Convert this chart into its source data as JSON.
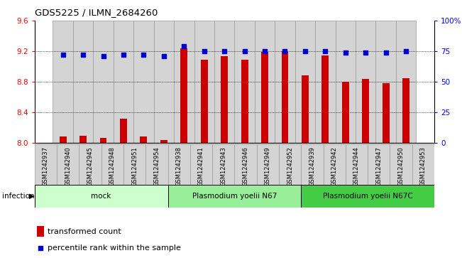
{
  "title": "GDS5225 / ILMN_2684260",
  "samples": [
    "GSM1242937",
    "GSM1242940",
    "GSM1242945",
    "GSM1242948",
    "GSM1242951",
    "GSM1242954",
    "GSM1242938",
    "GSM1242941",
    "GSM1242943",
    "GSM1242946",
    "GSM1242949",
    "GSM1242952",
    "GSM1242939",
    "GSM1242942",
    "GSM1242944",
    "GSM1242947",
    "GSM1242950",
    "GSM1242953"
  ],
  "bar_values": [
    8.09,
    8.1,
    8.07,
    8.32,
    8.09,
    8.04,
    9.24,
    9.09,
    9.14,
    9.09,
    9.19,
    9.2,
    8.89,
    9.15,
    8.8,
    8.84,
    8.78,
    8.85
  ],
  "dot_values": [
    72,
    72,
    71,
    72,
    72,
    71,
    79,
    75,
    75,
    75,
    75,
    75,
    75,
    75,
    74,
    74,
    74,
    75
  ],
  "bar_color": "#cc0000",
  "dot_color": "#0000cc",
  "ylim_left": [
    8.0,
    9.6
  ],
  "ylim_right": [
    0,
    100
  ],
  "yticks_left": [
    8.0,
    8.4,
    8.8,
    9.2,
    9.6
  ],
  "yticks_right": [
    0,
    25,
    50,
    75,
    100
  ],
  "group_labels": [
    "mock",
    "Plasmodium yoelii N67",
    "Plasmodium yoelii N67C"
  ],
  "group_sizes": [
    6,
    6,
    6
  ],
  "group_colors_light": [
    "#ccffcc",
    "#99ee99",
    "#44cc44"
  ],
  "infection_label": "infection",
  "legend_bar_label": "transformed count",
  "legend_dot_label": "percentile rank within the sample",
  "cell_bg_color": "#d4d4d4",
  "cell_border_color": "#999999"
}
